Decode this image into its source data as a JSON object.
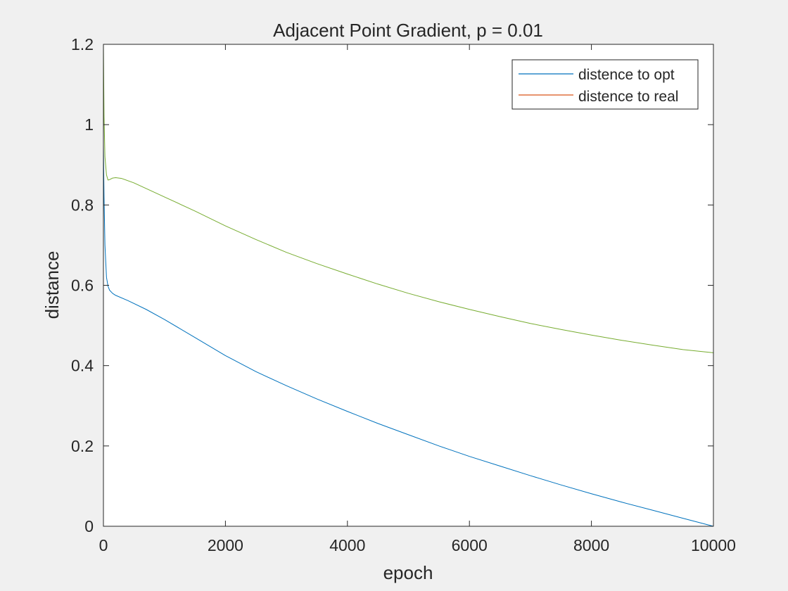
{
  "chart_data": {
    "type": "line",
    "title": "Adjacent Point Gradient, p = 0.01",
    "xlabel": "epoch",
    "ylabel": "distance",
    "xlim": [
      0,
      10000
    ],
    "ylim": [
      0,
      1.2
    ],
    "xticks": [
      0,
      2000,
      4000,
      6000,
      8000,
      10000
    ],
    "xtick_labels": [
      "0",
      "2000",
      "4000",
      "6000",
      "8000",
      "10000"
    ],
    "yticks": [
      0,
      0.2,
      0.4,
      0.6,
      0.8,
      1.0,
      1.2
    ],
    "ytick_labels": [
      "0",
      "0.2",
      "0.4",
      "0.6",
      "0.8",
      "1",
      "1.2"
    ],
    "grid": false,
    "legend_position": "top-right",
    "colors": {
      "background": "#f0f0f0",
      "axes": "#ffffff",
      "axis_line": "#262626",
      "green_curve": "#77ac30"
    },
    "series": [
      {
        "name": "distence to opt",
        "color": "#0072bd",
        "x": [
          0,
          10,
          25,
          50,
          75,
          100,
          150,
          200,
          400,
          700,
          1000,
          1500,
          2000,
          2500,
          3000,
          3500,
          4000,
          4500,
          5000,
          5500,
          6000,
          6500,
          7000,
          7500,
          8000,
          8500,
          9000,
          9500,
          10000
        ],
        "y": [
          0.95,
          0.82,
          0.7,
          0.62,
          0.598,
          0.588,
          0.58,
          0.575,
          0.562,
          0.54,
          0.515,
          0.47,
          0.425,
          0.385,
          0.35,
          0.317,
          0.286,
          0.256,
          0.228,
          0.2,
          0.174,
          0.15,
          0.126,
          0.103,
          0.081,
          0.06,
          0.04,
          0.02,
          0.0
        ]
      },
      {
        "name": "distence to real",
        "color": "#d95319",
        "x": [
          0,
          10000
        ],
        "y": [
          0,
          0
        ]
      },
      {
        "name": "",
        "color": "#77ac30",
        "x": [
          0,
          10,
          25,
          50,
          75,
          100,
          150,
          200,
          300,
          500,
          1000,
          1500,
          2000,
          2500,
          3000,
          3500,
          4000,
          4500,
          5000,
          5500,
          6000,
          6500,
          7000,
          7500,
          8000,
          8500,
          9000,
          9500,
          10000
        ],
        "y": [
          1.2,
          1.02,
          0.92,
          0.875,
          0.862,
          0.863,
          0.867,
          0.868,
          0.866,
          0.855,
          0.82,
          0.785,
          0.748,
          0.714,
          0.682,
          0.654,
          0.628,
          0.603,
          0.58,
          0.559,
          0.54,
          0.522,
          0.505,
          0.49,
          0.476,
          0.463,
          0.451,
          0.44,
          0.432
        ]
      }
    ]
  }
}
